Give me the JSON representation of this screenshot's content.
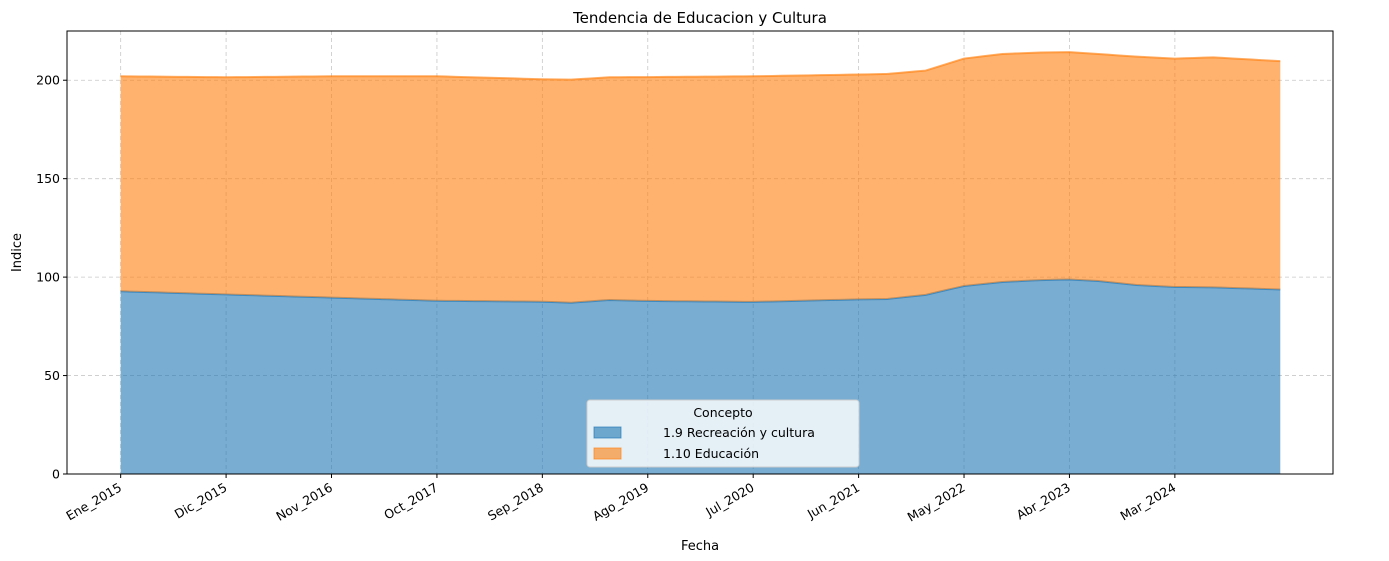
{
  "chart_data": {
    "type": "area",
    "stacked": true,
    "title": "Tendencia de Educacion y Cultura",
    "xlabel": "Fecha",
    "ylabel": "Indice",
    "ylim": [
      0,
      225
    ],
    "yticks": [
      0,
      50,
      100,
      150,
      200
    ],
    "xticks": [
      "Ene_2015",
      "Dic_2015",
      "Nov_2016",
      "Oct_2017",
      "Sep_2018",
      "Ago_2019",
      "Jul_2020",
      "Jun_2021",
      "May_2022",
      "Abr_2023",
      "Mar_2024"
    ],
    "grid": true,
    "legend": {
      "title": "Concepto",
      "position": "lower-center"
    },
    "x_start": "Ene_2015",
    "x_end": "Feb_2025",
    "series": [
      {
        "name": "1.9 Recreación y cultura",
        "color": "#1f77b4",
        "values": [
          [
            0,
            92.8
          ],
          [
            11,
            91.2
          ],
          [
            22,
            89.6
          ],
          [
            33,
            88.0
          ],
          [
            44,
            87.5
          ],
          [
            47,
            87.0
          ],
          [
            51,
            88.4
          ],
          [
            55,
            87.9
          ],
          [
            66,
            87.4
          ],
          [
            77,
            88.7
          ],
          [
            80,
            88.9
          ],
          [
            84,
            91.0
          ],
          [
            88,
            95.5
          ],
          [
            92,
            97.5
          ],
          [
            96,
            98.5
          ],
          [
            99,
            98.8
          ],
          [
            102,
            98.0
          ],
          [
            106,
            96.0
          ],
          [
            110,
            95.0
          ],
          [
            114,
            94.8
          ],
          [
            118,
            94.2
          ],
          [
            121,
            93.7
          ]
        ]
      },
      {
        "name": "1.10 Educación",
        "color": "#ff7f0e",
        "values": [
          [
            0,
            109.2
          ],
          [
            11,
            110.3
          ],
          [
            22,
            112.4
          ],
          [
            33,
            114.0
          ],
          [
            44,
            113.0
          ],
          [
            47,
            113.3
          ],
          [
            51,
            113.1
          ],
          [
            55,
            113.7
          ],
          [
            66,
            114.6
          ],
          [
            77,
            114.2
          ],
          [
            80,
            114.3
          ],
          [
            84,
            113.9
          ],
          [
            88,
            115.5
          ],
          [
            92,
            115.8
          ],
          [
            96,
            115.6
          ],
          [
            99,
            115.5
          ],
          [
            102,
            115.3
          ],
          [
            106,
            116.0
          ],
          [
            110,
            116.0
          ],
          [
            114,
            116.8
          ],
          [
            118,
            116.3
          ],
          [
            121,
            116.0
          ]
        ]
      }
    ]
  }
}
